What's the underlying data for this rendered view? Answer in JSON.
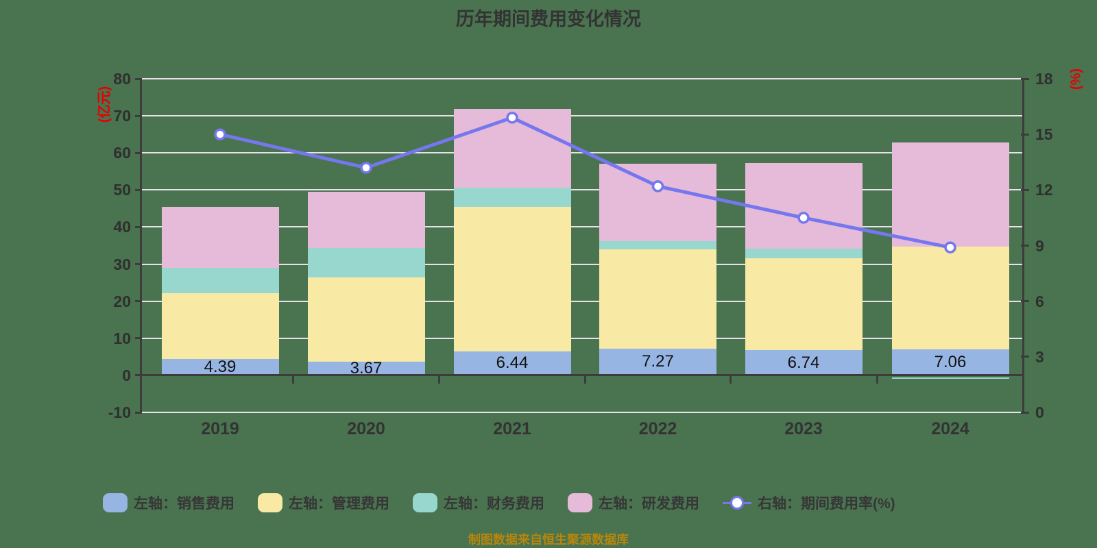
{
  "title": "历年期间费用变化情况",
  "source_note": "制图数据来自恒生聚源数据库",
  "colors": {
    "background": "#4a7350",
    "grid": "#e9e2e9",
    "axis": "#3c3c3c",
    "text": "#333333",
    "axis_unit_red": "#e60000",
    "source_gold": "#b8860b",
    "bar_sales_blue": "#97b5e3",
    "bar_management_yellow": "#f8e9a5",
    "bar_finance_teal": "#98d7ce",
    "bar_rd_pink": "#e6bad9",
    "line_purple": "#7577ee"
  },
  "left_axis": {
    "unit": "(亿元)",
    "min": -10,
    "max": 80,
    "ticks": [
      80,
      70,
      60,
      50,
      40,
      30,
      20,
      10,
      0,
      -10
    ]
  },
  "right_axis": {
    "unit": "(%)",
    "min": 0,
    "max": 18,
    "ticks": [
      18,
      15,
      12,
      9,
      6,
      3,
      0
    ]
  },
  "chart_data": {
    "type": "bar",
    "subtype": "stacked_bars_with_line_overlay",
    "title": "历年期间费用变化情况",
    "categories": [
      "2019",
      "2020",
      "2021",
      "2022",
      "2023",
      "2024"
    ],
    "left_ylim": [
      -10,
      80
    ],
    "right_ylim": [
      0,
      18
    ],
    "grid": true,
    "legend_position": "bottom",
    "series": [
      {
        "key": "sales",
        "name": "左轴：销售费用",
        "type": "bar",
        "axis": "left",
        "color": "#97b5e3",
        "values": [
          4.39,
          3.67,
          6.44,
          7.27,
          6.74,
          7.06
        ],
        "labels": [
          "4.39",
          "3.67",
          "6.44",
          "7.27",
          "6.74",
          "7.06"
        ]
      },
      {
        "key": "management",
        "name": "左轴：管理费用",
        "type": "bar",
        "axis": "left",
        "color": "#f8e9a5",
        "values": [
          17.8,
          22.7,
          39.0,
          26.7,
          24.9,
          27.6
        ]
      },
      {
        "key": "finance",
        "name": "左轴：财务费用",
        "type": "bar",
        "axis": "left",
        "color": "#98d7ce",
        "values": [
          6.8,
          8.0,
          5.2,
          2.3,
          2.6,
          -0.5
        ]
      },
      {
        "key": "rd",
        "name": "左轴：研发费用",
        "type": "bar",
        "axis": "left",
        "color": "#e6bad9",
        "values": [
          16.4,
          15.1,
          21.3,
          20.9,
          23.0,
          28.2
        ]
      },
      {
        "key": "expense-ratio",
        "name": "右轴：期间费用率(%)",
        "type": "line",
        "axis": "right",
        "color": "#7577ee",
        "marker": "circle",
        "values": [
          15.0,
          13.2,
          15.9,
          12.2,
          10.5,
          8.9
        ]
      }
    ]
  }
}
